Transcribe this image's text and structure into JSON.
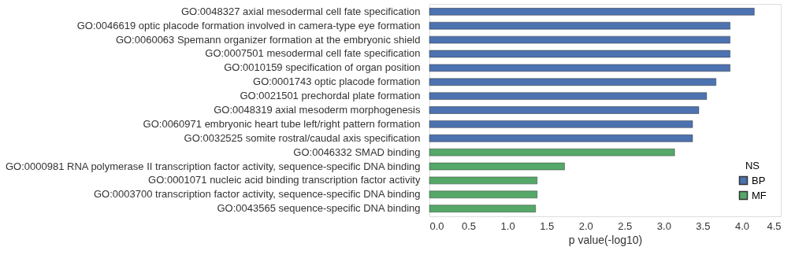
{
  "chart_data": {
    "type": "bar",
    "orientation": "horizontal",
    "xlabel": "p value(-log10)",
    "legend_title": "NS",
    "legend": "bottom right",
    "grid": false,
    "categories": [
      "GO:0048327 axial mesodermal cell fate specification",
      "GO:0046619 optic placode formation involved in camera-type eye formation",
      "GO:0060063 Spemann organizer formation at the embryonic shield",
      "GO:0007501 mesodermal cell fate specification",
      "GO:0010159 specification of organ position",
      "GO:0001743 optic placode formation",
      "GO:0021501 prechordal plate formation",
      "GO:0048319 axial mesoderm morphogenesis",
      "GO:0060971 embryonic heart tube left/right pattern formation",
      "GO:0032525 somite rostral/caudal axis specification",
      "GO:0046332 SMAD binding",
      "GO:0000981 RNA polymerase II transcription factor activity, sequence-specific DNA binding",
      "GO:0001071 nucleic acid binding transcription factor activity",
      "GO:0003700 transcription factor activity, sequence-specific DNA binding",
      "GO:0043565 sequence-specific DNA binding"
    ],
    "series": [
      {
        "name": "BP",
        "color": "#4c72b0",
        "values": [
          4.16,
          3.85,
          3.85,
          3.85,
          3.85,
          3.67,
          3.55,
          3.45,
          3.37,
          3.37,
          null,
          null,
          null,
          null,
          null
        ]
      },
      {
        "name": "MF",
        "color": "#55a868",
        "values": [
          null,
          null,
          null,
          null,
          null,
          null,
          null,
          null,
          null,
          null,
          3.14,
          1.73,
          1.38,
          1.38,
          1.36
        ]
      }
    ],
    "xlim": [
      0,
      4.5
    ],
    "xticks": [
      {
        "value": 0,
        "label": "0.0"
      },
      {
        "value": 0.5,
        "label": "0.5"
      },
      {
        "value": 1,
        "label": "1.0"
      },
      {
        "value": 1.5,
        "label": "1.5"
      },
      {
        "value": 2,
        "label": "2.0"
      },
      {
        "value": 2.5,
        "label": "2.5"
      },
      {
        "value": 3,
        "label": "3.0"
      },
      {
        "value": 3.5,
        "label": "3.5"
      },
      {
        "value": 4,
        "label": "4.0"
      },
      {
        "value": 4.5,
        "label": "4.5"
      }
    ]
  }
}
